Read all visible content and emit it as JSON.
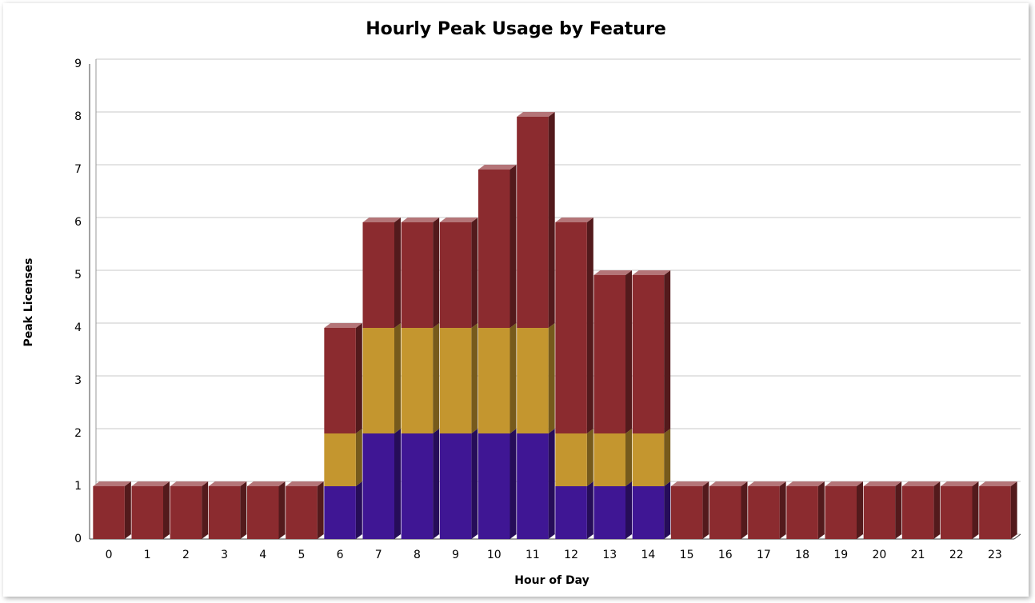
{
  "chart_data": {
    "type": "bar3d-stacked",
    "title": "Hourly Peak Usage by Feature",
    "x_label": "Hour of Day",
    "y_label": "Peak Licenses",
    "categories": [
      "0",
      "1",
      "2",
      "3",
      "4",
      "5",
      "6",
      "7",
      "8",
      "9",
      "10",
      "11",
      "12",
      "13",
      "14",
      "15",
      "16",
      "17",
      "18",
      "19",
      "20",
      "21",
      "22",
      "23"
    ],
    "series": [
      {
        "color": "#3f1694",
        "values": [
          0,
          0,
          0,
          0,
          0,
          0,
          1,
          2,
          2,
          2,
          2,
          2,
          1,
          1,
          1,
          0,
          0,
          0,
          0,
          0,
          0,
          0,
          0,
          0
        ]
      },
      {
        "color": "#c4962f",
        "values": [
          0,
          0,
          0,
          0,
          0,
          0,
          1,
          2,
          2,
          2,
          2,
          2,
          1,
          1,
          1,
          0,
          0,
          0,
          0,
          0,
          0,
          0,
          0,
          0
        ]
      },
      {
        "color": "#8b2b2f",
        "values": [
          1,
          1,
          1,
          1,
          1,
          1,
          2,
          2,
          2,
          2,
          3,
          4,
          4,
          3,
          3,
          1,
          1,
          1,
          1,
          1,
          1,
          1,
          1,
          1
        ]
      }
    ],
    "ylim": [
      0,
      9
    ],
    "yticks": [
      0,
      1,
      2,
      3,
      4,
      5,
      6,
      7,
      8,
      9
    ],
    "grid": true
  }
}
